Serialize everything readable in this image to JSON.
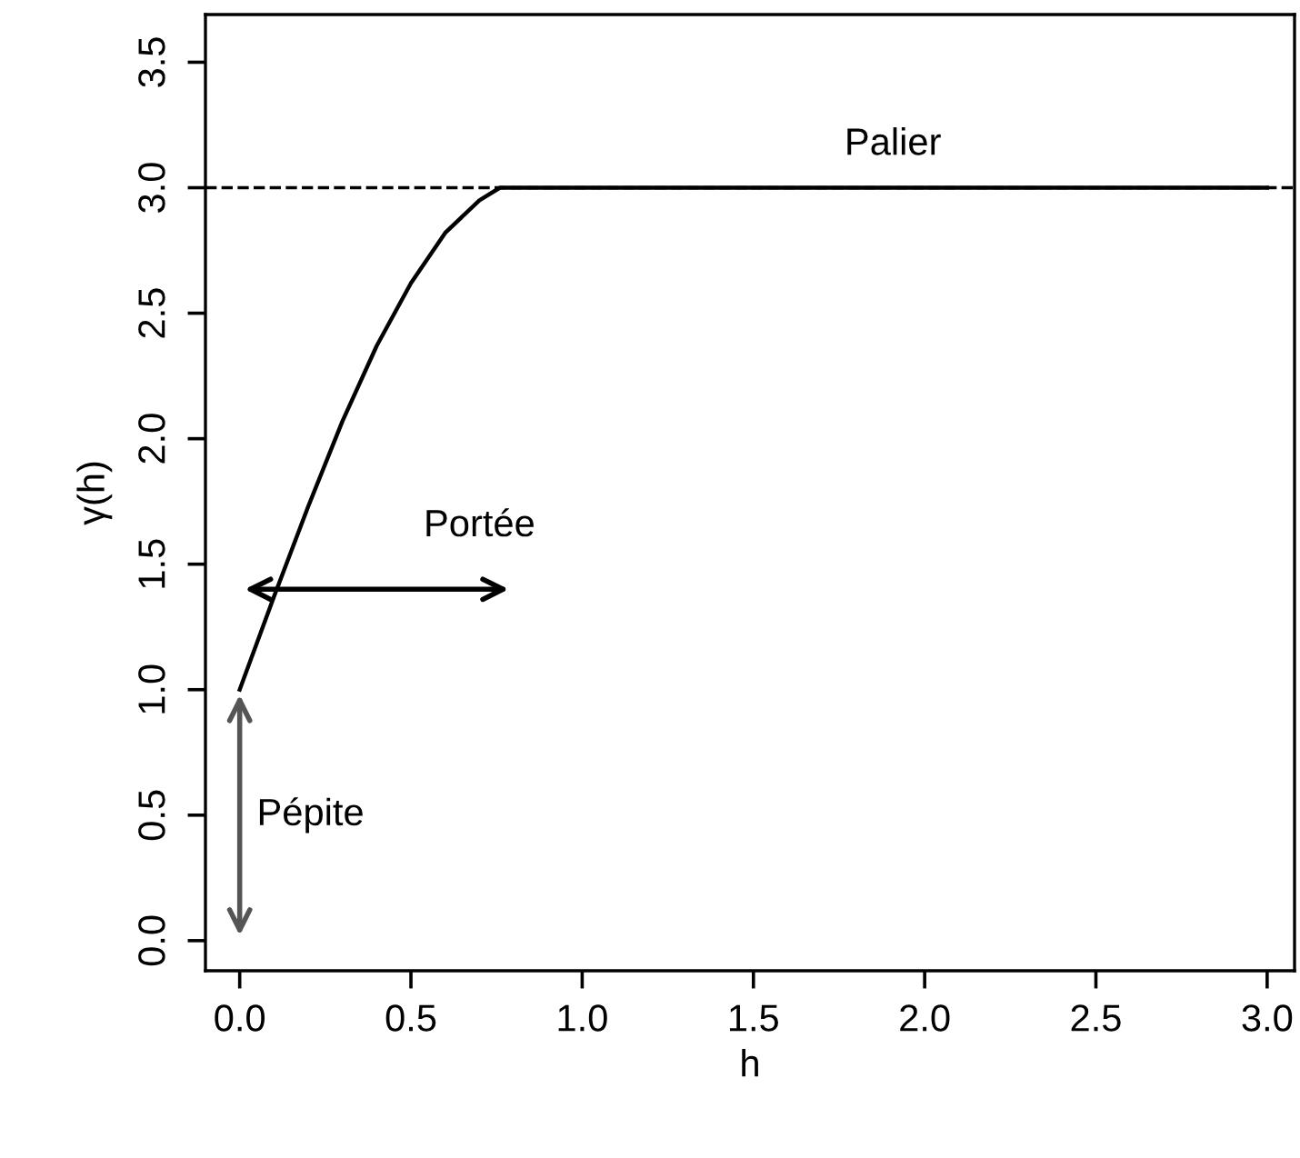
{
  "chart_data": {
    "type": "line",
    "xlabel": "h",
    "ylabel": "γ(h)",
    "x": [
      0,
      0.1,
      0.2,
      0.3,
      0.4,
      0.5,
      0.6,
      0.7,
      0.76,
      1.0,
      2.0,
      3.0
    ],
    "series": [
      {
        "color": "#000000",
        "values": [
          1.0,
          1.37,
          1.73,
          2.07,
          2.37,
          2.62,
          2.82,
          2.95,
          3.0,
          3.0,
          3.0,
          3.0
        ]
      }
    ],
    "xlim": [
      -0.1,
      3.08
    ],
    "ylim": [
      -0.12,
      3.69
    ],
    "xticks": [
      {
        "value": 0,
        "label": "0.0"
      },
      0.5,
      {
        "value": 1,
        "label": "1.0"
      },
      1.5,
      {
        "value": 2,
        "label": "2.0"
      },
      2.5,
      {
        "value": 3,
        "label": "3.0"
      }
    ],
    "yticks": [
      {
        "value": 0,
        "label": "0.0"
      },
      0.5,
      {
        "value": 1,
        "label": "1.0"
      },
      1.5,
      {
        "value": 2,
        "label": "2.0"
      },
      2.5,
      {
        "value": 3,
        "label": "3.0"
      },
      3.5
    ],
    "ref_lines": [
      {
        "axis": "y",
        "value": 3,
        "label": "Palier",
        "line_style": "dashed",
        "color": "#000000"
      }
    ],
    "annotations": [
      "Portée",
      "Pépite"
    ],
    "grid": false,
    "marker": "none",
    "line_style": "solid"
  }
}
